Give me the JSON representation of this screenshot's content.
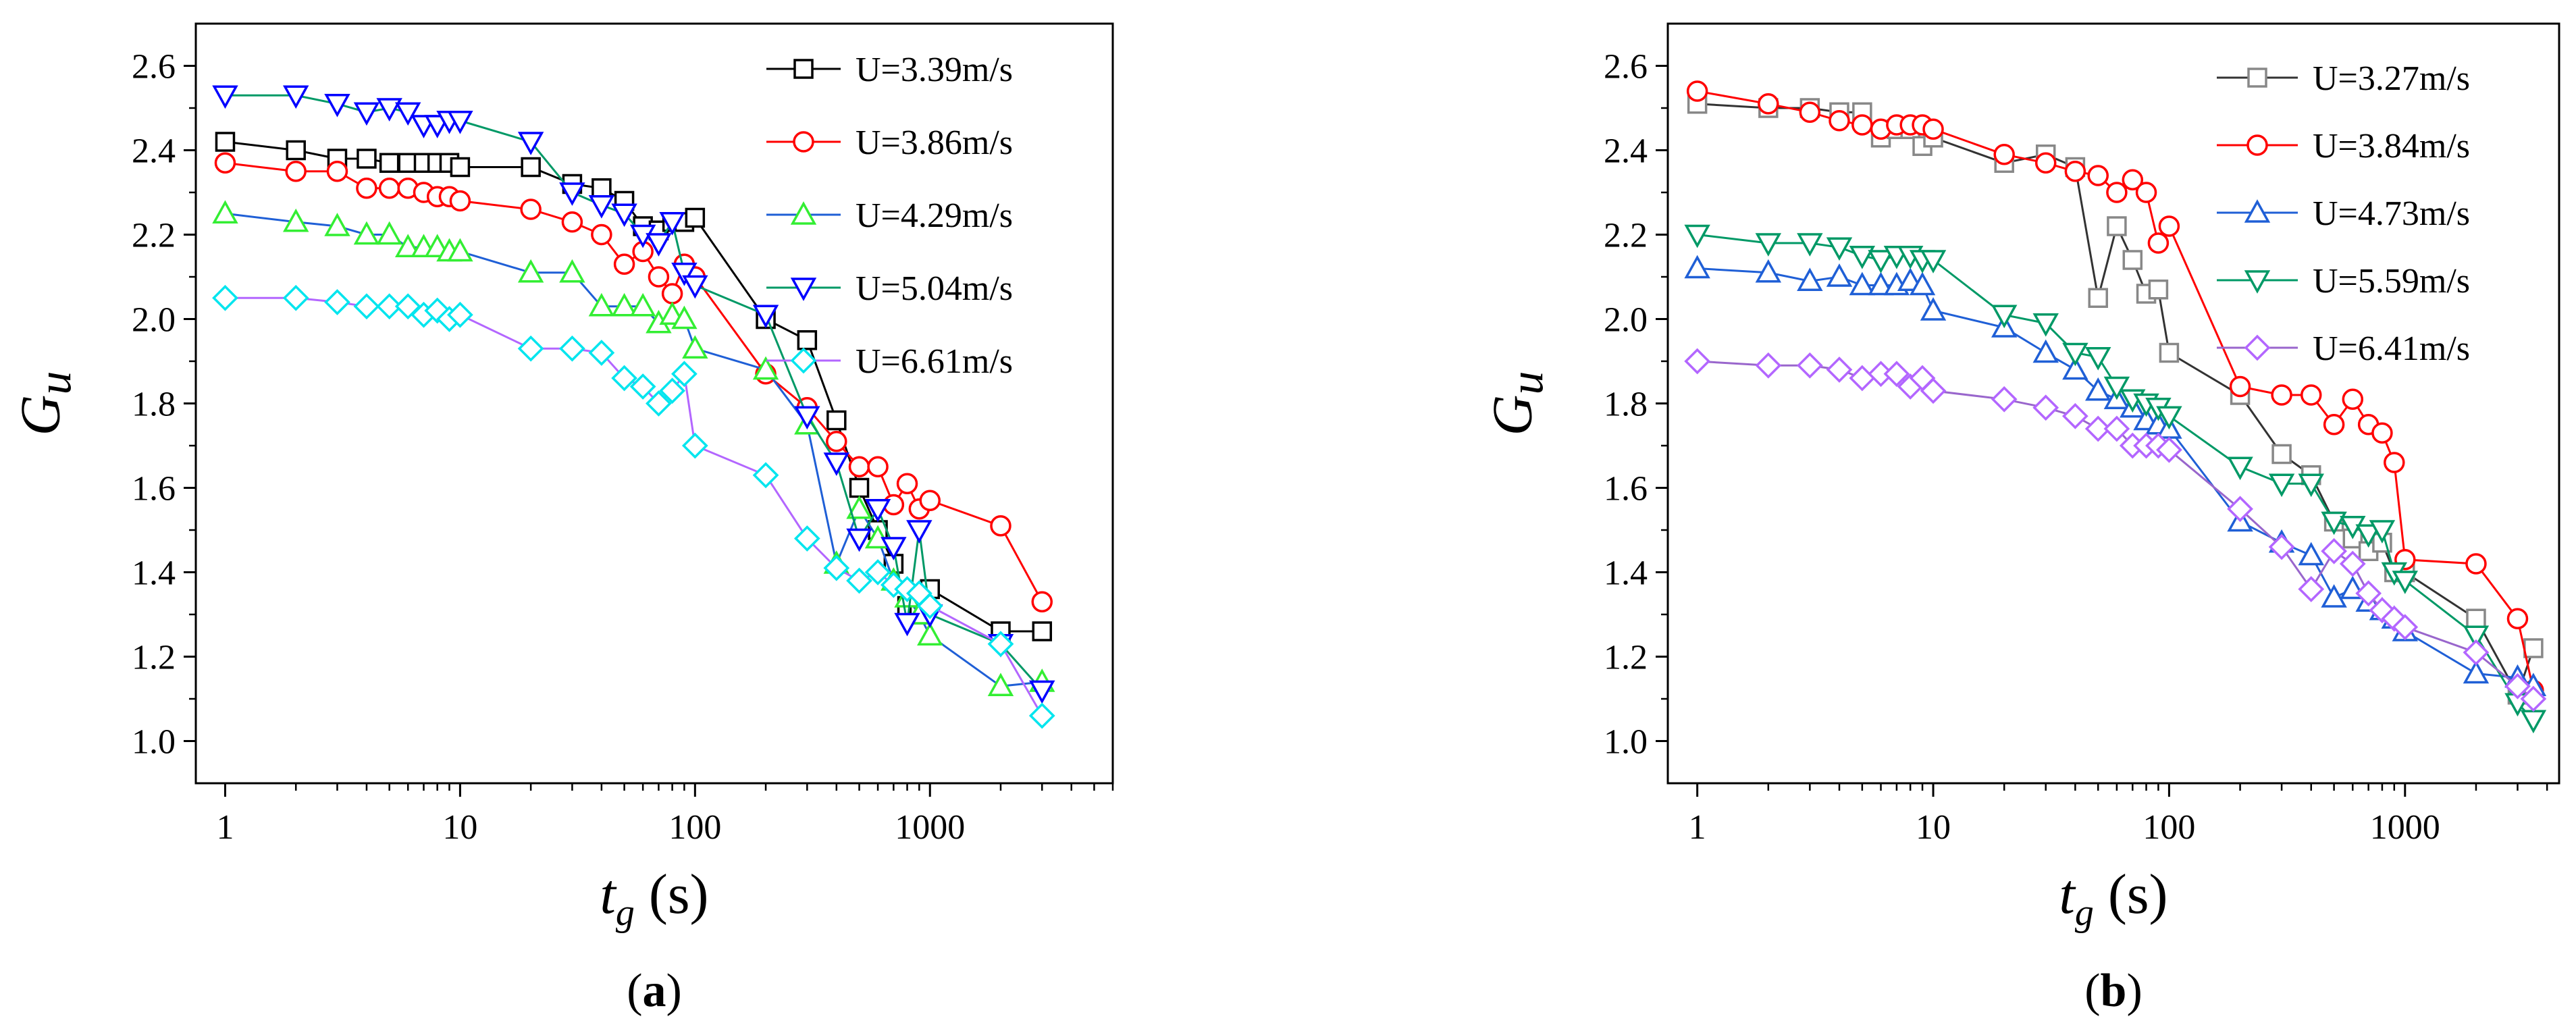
{
  "chart_data": [
    {
      "type": "line",
      "panel_label": "(a)",
      "panel_letter": "a",
      "xlabel": "t_g (s)",
      "xlabel_main": "t",
      "xlabel_sub": "g",
      "xlabel_unit": " (s)",
      "ylabel": "Gu",
      "ylabel_main": "G",
      "ylabel_sub": "u",
      "xscale": "log",
      "xlim": [
        0.75,
        6000
      ],
      "ylim": [
        0.9,
        2.7
      ],
      "xticks": [
        1,
        10,
        100,
        1000
      ],
      "xtick_labels": [
        "1",
        "10",
        "100",
        "1000"
      ],
      "yticks": [
        1.0,
        1.2,
        1.4,
        1.6,
        1.8,
        2.0,
        2.2,
        2.4,
        2.6
      ],
      "ytick_labels": [
        "1.0",
        "1.2",
        "1.4",
        "1.6",
        "1.8",
        "2.0",
        "2.2",
        "2.4",
        "2.6"
      ],
      "legend_position": "top-right",
      "series": [
        {
          "name": "U=3.39m/s",
          "line_color": "#000000",
          "marker_color": "#000000",
          "marker": "square",
          "x": [
            1,
            2,
            3,
            4,
            5,
            6,
            7,
            8,
            9,
            10,
            20,
            30,
            40,
            50,
            60,
            70,
            80,
            90,
            100,
            200,
            300,
            400,
            500,
            600,
            700,
            800,
            900,
            1000,
            2000,
            3000
          ],
          "y": [
            2.42,
            2.4,
            2.38,
            2.38,
            2.37,
            2.37,
            2.37,
            2.37,
            2.37,
            2.36,
            2.36,
            2.32,
            2.31,
            2.28,
            2.22,
            2.21,
            2.23,
            2.23,
            2.24,
            2.0,
            1.95,
            1.76,
            1.6,
            1.5,
            1.42,
            1.32,
            1.3,
            1.36,
            1.26,
            1.26
          ]
        },
        {
          "name": "U=3.86m/s",
          "line_color": "#ff0000",
          "marker_color": "#ff0000",
          "marker": "circle",
          "x": [
            1,
            2,
            3,
            4,
            5,
            6,
            7,
            8,
            9,
            10,
            20,
            30,
            40,
            50,
            60,
            70,
            80,
            90,
            100,
            200,
            300,
            400,
            500,
            600,
            700,
            800,
            900,
            1000,
            2000,
            3000
          ],
          "y": [
            2.37,
            2.35,
            2.35,
            2.31,
            2.31,
            2.31,
            2.3,
            2.29,
            2.29,
            2.28,
            2.26,
            2.23,
            2.2,
            2.13,
            2.16,
            2.1,
            2.06,
            2.13,
            2.1,
            1.87,
            1.79,
            1.71,
            1.65,
            1.65,
            1.56,
            1.61,
            1.55,
            1.57,
            1.51,
            1.33
          ]
        },
        {
          "name": "U=4.29m/s",
          "line_color": "#1f5fd6",
          "marker_color": "#33ee33",
          "marker": "triangle-up",
          "x": [
            1,
            2,
            3,
            4,
            5,
            6,
            7,
            8,
            9,
            10,
            20,
            30,
            40,
            50,
            60,
            70,
            80,
            90,
            100,
            200,
            300,
            400,
            500,
            600,
            700,
            800,
            900,
            1000,
            2000,
            3000
          ],
          "y": [
            2.25,
            2.23,
            2.22,
            2.2,
            2.2,
            2.17,
            2.17,
            2.17,
            2.16,
            2.16,
            2.11,
            2.11,
            2.03,
            2.03,
            2.03,
            1.99,
            2.01,
            2.0,
            1.93,
            1.88,
            1.75,
            1.42,
            1.55,
            1.48,
            1.38,
            1.34,
            1.3,
            1.25,
            1.13,
            1.14
          ]
        },
        {
          "name": "U=5.04m/s",
          "line_color": "#009966",
          "marker_color": "#0000ff",
          "marker": "triangle-down",
          "x": [
            1,
            2,
            3,
            4,
            5,
            6,
            7,
            8,
            9,
            10,
            20,
            30,
            40,
            50,
            60,
            70,
            80,
            90,
            100,
            200,
            300,
            400,
            500,
            600,
            700,
            800,
            900,
            1000,
            2000,
            3000
          ],
          "y": [
            2.53,
            2.53,
            2.51,
            2.49,
            2.5,
            2.49,
            2.46,
            2.46,
            2.47,
            2.47,
            2.42,
            2.3,
            2.27,
            2.25,
            2.2,
            2.18,
            2.23,
            2.11,
            2.08,
            2.01,
            1.77,
            1.66,
            1.48,
            1.55,
            1.46,
            1.28,
            1.5,
            1.3,
            1.23,
            1.12
          ]
        },
        {
          "name": "U=6.61m/s",
          "line_color": "#b366ff",
          "marker_color": "#00e5ee",
          "marker": "diamond",
          "x": [
            1,
            2,
            3,
            4,
            5,
            6,
            7,
            8,
            9,
            10,
            20,
            30,
            40,
            50,
            60,
            70,
            80,
            90,
            100,
            200,
            300,
            400,
            500,
            600,
            700,
            800,
            900,
            1000,
            2000,
            3000
          ],
          "y": [
            2.05,
            2.05,
            2.04,
            2.03,
            2.03,
            2.03,
            2.01,
            2.02,
            2.0,
            2.01,
            1.93,
            1.93,
            1.92,
            1.86,
            1.84,
            1.8,
            1.83,
            1.87,
            1.7,
            1.63,
            1.48,
            1.41,
            1.38,
            1.4,
            1.37,
            1.36,
            1.35,
            1.32,
            1.23,
            1.06
          ]
        }
      ]
    },
    {
      "type": "line",
      "panel_label": "(b)",
      "panel_letter": "b",
      "xlabel": "t_g (s)",
      "xlabel_main": "t",
      "xlabel_sub": "g",
      "xlabel_unit": " (s)",
      "ylabel": "Gu",
      "ylabel_main": "G",
      "ylabel_sub": "u",
      "xscale": "log",
      "xlim": [
        0.75,
        4500
      ],
      "ylim": [
        0.9,
        2.7
      ],
      "xticks": [
        1,
        10,
        100,
        1000
      ],
      "xtick_labels": [
        "1",
        "10",
        "100",
        "1000"
      ],
      "yticks": [
        1.0,
        1.2,
        1.4,
        1.6,
        1.8,
        2.0,
        2.2,
        2.4,
        2.6
      ],
      "ytick_labels": [
        "1.0",
        "1.2",
        "1.4",
        "1.6",
        "1.8",
        "2.0",
        "2.2",
        "2.4",
        "2.6"
      ],
      "legend_position": "top-right",
      "series": [
        {
          "name": "U=3.27m/s",
          "line_color": "#333333",
          "marker_color": "#888888",
          "marker": "square",
          "x": [
            1,
            2,
            3,
            4,
            5,
            6,
            7,
            8,
            9,
            10,
            20,
            30,
            40,
            50,
            60,
            70,
            80,
            90,
            100,
            200,
            300,
            400,
            500,
            600,
            700,
            800,
            900,
            1000,
            2000,
            3000,
            3500
          ],
          "y": [
            2.51,
            2.5,
            2.5,
            2.49,
            2.49,
            2.43,
            2.45,
            2.45,
            2.41,
            2.43,
            2.37,
            2.39,
            2.36,
            2.05,
            2.22,
            2.14,
            2.06,
            2.07,
            1.92,
            1.82,
            1.68,
            1.63,
            1.52,
            1.48,
            1.45,
            1.47,
            1.4,
            1.4,
            1.29,
            1.11,
            1.22
          ]
        },
        {
          "name": "U=3.84m/s",
          "line_color": "#ff0000",
          "marker_color": "#ff0000",
          "marker": "circle",
          "x": [
            1,
            2,
            3,
            4,
            5,
            6,
            7,
            8,
            9,
            10,
            20,
            30,
            40,
            50,
            60,
            70,
            80,
            90,
            100,
            200,
            300,
            400,
            500,
            600,
            700,
            800,
            900,
            1000,
            2000,
            3000,
            3500
          ],
          "y": [
            2.54,
            2.51,
            2.49,
            2.47,
            2.46,
            2.45,
            2.46,
            2.46,
            2.46,
            2.45,
            2.39,
            2.37,
            2.35,
            2.34,
            2.3,
            2.33,
            2.3,
            2.18,
            2.22,
            1.84,
            1.82,
            1.82,
            1.75,
            1.81,
            1.75,
            1.73,
            1.66,
            1.43,
            1.42,
            1.29,
            1.12
          ]
        },
        {
          "name": "U=4.73m/s",
          "line_color": "#1f5fd6",
          "marker_color": "#1f5fd6",
          "marker": "triangle-up",
          "x": [
            1,
            2,
            3,
            4,
            5,
            6,
            7,
            8,
            9,
            10,
            20,
            30,
            40,
            50,
            60,
            70,
            80,
            90,
            100,
            200,
            300,
            400,
            500,
            600,
            700,
            800,
            900,
            1000,
            2000,
            3000,
            3500
          ],
          "y": [
            2.12,
            2.11,
            2.09,
            2.1,
            2.08,
            2.08,
            2.08,
            2.09,
            2.08,
            2.02,
            1.98,
            1.92,
            1.88,
            1.83,
            1.81,
            1.79,
            1.76,
            1.75,
            1.74,
            1.52,
            1.47,
            1.44,
            1.34,
            1.36,
            1.33,
            1.31,
            1.29,
            1.26,
            1.16,
            1.15,
            1.13
          ]
        },
        {
          "name": "U=5.59m/s",
          "line_color": "#009966",
          "marker_color": "#009966",
          "marker": "triangle-down",
          "x": [
            1,
            2,
            3,
            4,
            5,
            6,
            7,
            8,
            9,
            10,
            20,
            30,
            40,
            50,
            60,
            70,
            80,
            90,
            100,
            200,
            300,
            400,
            500,
            600,
            700,
            800,
            900,
            1000,
            2000,
            3000,
            3500
          ],
          "y": [
            2.2,
            2.18,
            2.18,
            2.17,
            2.15,
            2.14,
            2.15,
            2.15,
            2.14,
            2.14,
            2.01,
            1.99,
            1.92,
            1.91,
            1.84,
            1.81,
            1.8,
            1.79,
            1.77,
            1.65,
            1.61,
            1.61,
            1.52,
            1.51,
            1.49,
            1.5,
            1.4,
            1.38,
            1.25,
            1.09,
            1.05
          ]
        },
        {
          "name": "U=6.41m/s",
          "line_color": "#9966cc",
          "marker_color": "#b366ff",
          "marker": "diamond",
          "x": [
            1,
            2,
            3,
            4,
            5,
            6,
            7,
            8,
            9,
            10,
            20,
            30,
            40,
            50,
            60,
            70,
            80,
            90,
            100,
            200,
            300,
            400,
            500,
            600,
            700,
            800,
            900,
            1000,
            2000,
            3000,
            3500
          ],
          "y": [
            1.9,
            1.89,
            1.89,
            1.88,
            1.86,
            1.87,
            1.87,
            1.84,
            1.86,
            1.83,
            1.81,
            1.79,
            1.77,
            1.74,
            1.74,
            1.7,
            1.7,
            1.7,
            1.69,
            1.55,
            1.46,
            1.36,
            1.45,
            1.42,
            1.35,
            1.31,
            1.29,
            1.27,
            1.21,
            1.13,
            1.1
          ]
        }
      ]
    }
  ]
}
